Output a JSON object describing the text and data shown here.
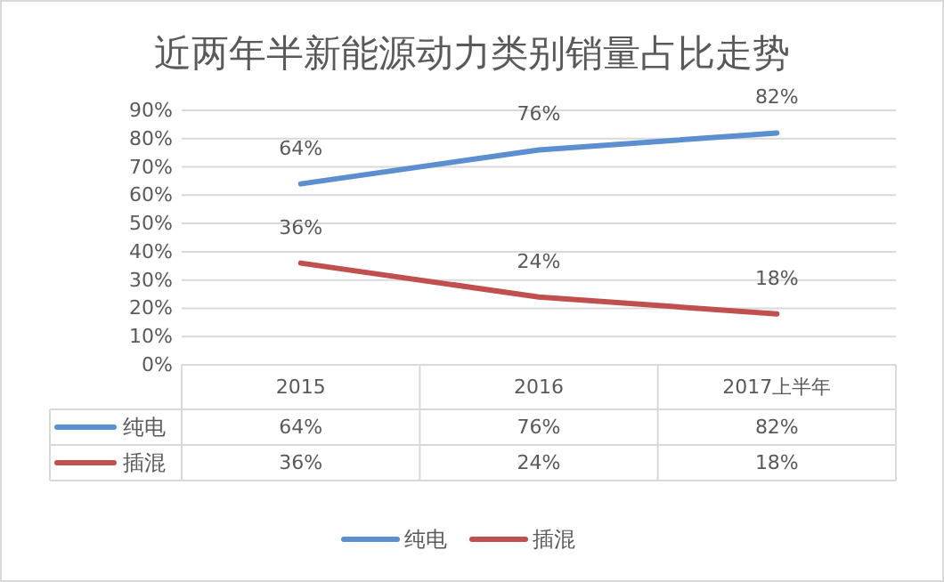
{
  "chart_data": {
    "type": "line",
    "title": "近两年半新能源动力类别销量占比走势",
    "categories": [
      "2015",
      "2016",
      "2017上半年"
    ],
    "series": [
      {
        "name": "纯电",
        "color": "#5b8fd0",
        "values": [
          64,
          76,
          82
        ],
        "value_labels": [
          "64%",
          "76%",
          "82%"
        ]
      },
      {
        "name": "插混",
        "color": "#c0504d",
        "values": [
          36,
          24,
          18
        ],
        "value_labels": [
          "36%",
          "24%",
          "18%"
        ]
      }
    ],
    "ylim": [
      0,
      90
    ],
    "yticks": [
      {
        "value": 0,
        "label": "0%"
      },
      {
        "value": 10,
        "label": "10%"
      },
      {
        "value": 20,
        "label": "20%"
      },
      {
        "value": 30,
        "label": "30%"
      },
      {
        "value": 40,
        "label": "40%"
      },
      {
        "value": 50,
        "label": "50%"
      },
      {
        "value": 60,
        "label": "60%"
      },
      {
        "value": 70,
        "label": "70%"
      },
      {
        "value": 80,
        "label": "80%"
      },
      {
        "value": 90,
        "label": "90%"
      }
    ],
    "grid": "y",
    "legend": "bottom"
  }
}
